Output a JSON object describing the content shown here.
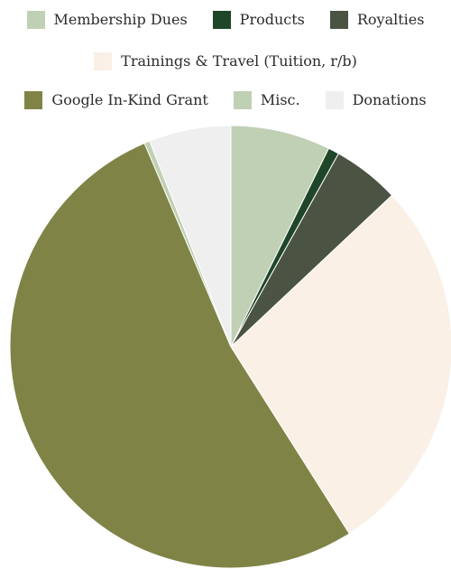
{
  "chart_data": {
    "type": "pie",
    "title": "",
    "start_angle": "12 o'clock",
    "direction": "clockwise",
    "legend_position": "top",
    "slices": [
      {
        "label": "Membership Dues",
        "value": 7.3,
        "color": "#c0d0b4"
      },
      {
        "label": "Products",
        "value": 0.8,
        "color": "#1f4628"
      },
      {
        "label": "Royalties",
        "value": 4.9,
        "color": "#4b5343"
      },
      {
        "label": "Trainings & Travel (Tuition, r/b)",
        "value": 28.0,
        "color": "#faf0e6"
      },
      {
        "label": "Google In-Kind Grant",
        "value": 52.6,
        "color": "#7f8446"
      },
      {
        "label": "Misc.",
        "value": 0.4,
        "color": "#c0d0b4"
      },
      {
        "label": "Donations",
        "value": 6.0,
        "color": "#efeff0"
      }
    ]
  }
}
